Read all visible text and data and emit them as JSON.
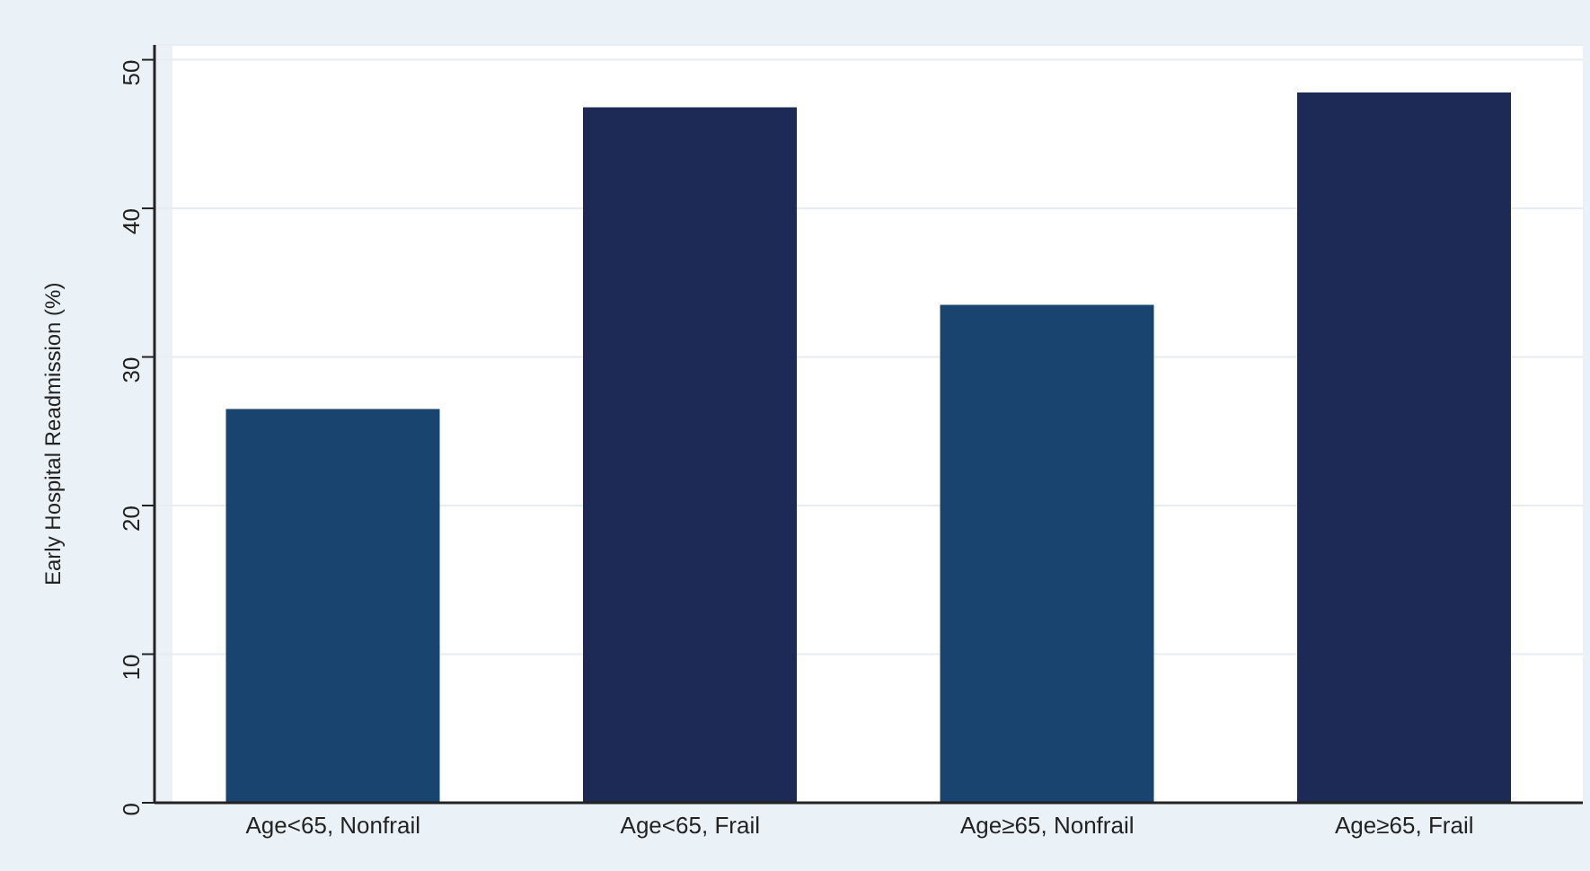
{
  "chart_data": {
    "type": "bar",
    "ylabel": "Early Hospital Readmission (%)",
    "categories": [
      "Age<65, Nonfrail",
      "Age<65, Frail",
      "Age≥65, Nonfrail",
      "Age≥65, Frail"
    ],
    "values": [
      26.5,
      46.8,
      33.5,
      47.8
    ],
    "colors": [
      "#1a4470",
      "#1e2a56",
      "#1a4470",
      "#1e2a56"
    ],
    "ylim": [
      0,
      51
    ],
    "yticks": [
      0,
      10,
      20,
      30,
      40,
      50
    ],
    "grid": "y"
  }
}
